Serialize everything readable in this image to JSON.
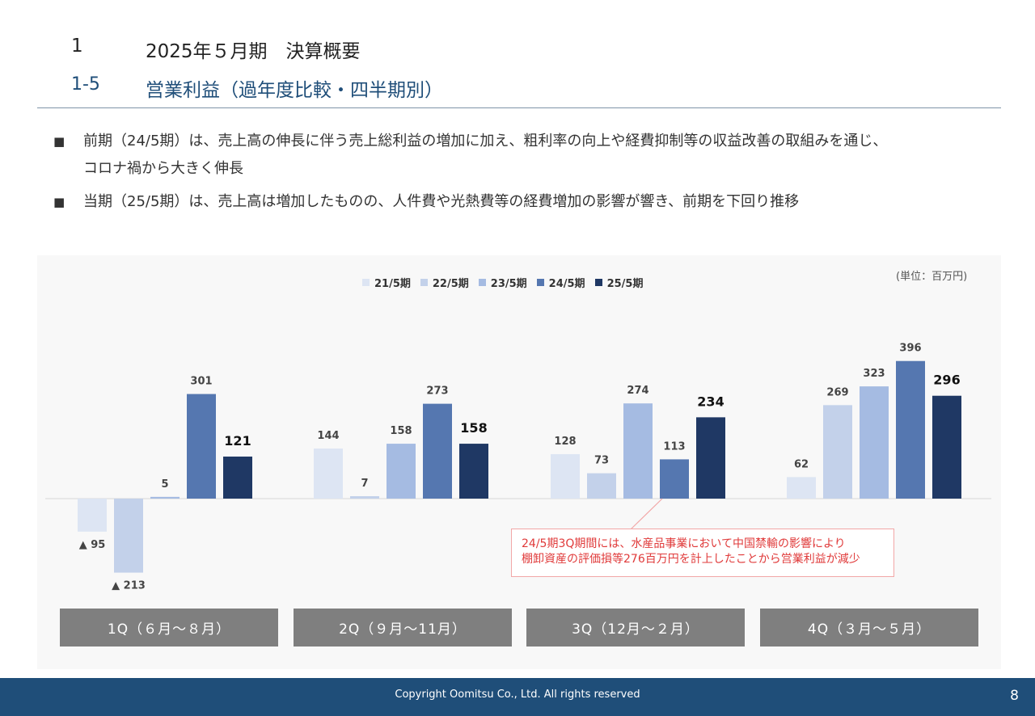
{
  "header": {
    "section_num": "1",
    "section_title": "2025年５月期　決算概要",
    "subsection_num": "1-5",
    "subsection_title": "営業利益（過年度比較・四半期別）"
  },
  "bullets": [
    {
      "mark": "■",
      "lines": [
        "前期（24/5期）は、売上高の伸長に伴う売上総利益の増加に加え、粗利率の向上や経費抑制等の収益改善の取組みを通じ、",
        "コロナ禍から大きく伸長"
      ]
    },
    {
      "mark": "■",
      "lines": [
        "当期（25/5期）は、売上高は増加したものの、人件費や光熱費等の経費増加の影響が響き、前期を下回り推移"
      ]
    }
  ],
  "chart_data": {
    "type": "bar",
    "unit": "(単位：百万円)",
    "categories": [
      "1Q（６月～８月）",
      "2Q（９月～11月）",
      "3Q（12月～２月）",
      "4Q（３月～５月）"
    ],
    "series": [
      {
        "name": "21/5期",
        "color": "#dde5f3",
        "values": [
          -95,
          144,
          128,
          62
        ]
      },
      {
        "name": "22/5期",
        "color": "#c3d1ea",
        "values": [
          -213,
          7,
          73,
          269
        ]
      },
      {
        "name": "23/5期",
        "color": "#a5bbe2",
        "values": [
          5,
          158,
          274,
          323
        ]
      },
      {
        "name": "24/5期",
        "color": "#5577b0",
        "values": [
          301,
          273,
          113,
          396
        ]
      },
      {
        "name": "25/5期",
        "color": "#1f3864",
        "values": [
          121,
          158,
          234,
          296
        ]
      }
    ],
    "negative_prefix": "▲ ",
    "annotation": {
      "lines": [
        "24/5期3Q期間には、水産品事業において中国禁輸の影響により",
        "棚卸資産の評価損等276百万円を計上したことから営業利益が減少"
      ],
      "color": "#e03a3a"
    }
  },
  "footer": {
    "copyright": "Copyright Oomitsu Co., Ltd. All rights reserved",
    "page_number": "8"
  },
  "colors": {
    "title_blue": "#1f4e79",
    "footer_bg": "#1f4e79",
    "quarter_box_bg": "#7f7f7f"
  }
}
